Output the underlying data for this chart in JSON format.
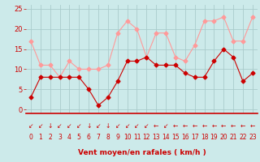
{
  "x": [
    0,
    1,
    2,
    3,
    4,
    5,
    6,
    7,
    8,
    9,
    10,
    11,
    12,
    13,
    14,
    15,
    16,
    17,
    18,
    19,
    20,
    21,
    22,
    23
  ],
  "avg_wind": [
    3,
    8,
    8,
    8,
    8,
    8,
    5,
    1,
    3,
    7,
    12,
    12,
    13,
    11,
    11,
    11,
    9,
    8,
    8,
    12,
    15,
    13,
    7,
    9
  ],
  "gust_wind": [
    17,
    11,
    11,
    8,
    12,
    10,
    10,
    10,
    11,
    19,
    22,
    20,
    13,
    19,
    19,
    13,
    12,
    16,
    22,
    22,
    23,
    17,
    17,
    23
  ],
  "bg_color": "#cceaea",
  "grid_color": "#aacccc",
  "avg_color": "#cc0000",
  "gust_color": "#ff9999",
  "xlabel": "Vent moyen/en rafales ( km/h )",
  "xlabel_color": "#cc0000",
  "tick_color": "#cc0000",
  "arrow_color": "#cc0000",
  "ylim": [
    -1,
    26
  ],
  "yticks": [
    0,
    5,
    10,
    15,
    20,
    25
  ],
  "xticks": [
    0,
    1,
    2,
    3,
    4,
    5,
    6,
    7,
    8,
    9,
    10,
    11,
    12,
    13,
    14,
    15,
    16,
    17,
    18,
    19,
    20,
    21,
    22,
    23
  ],
  "arrow_chars": [
    "↙",
    "↙",
    "↓",
    "↙",
    "↙",
    "↙",
    "↓",
    "↙",
    "↓",
    "↙",
    "↙",
    "↙",
    "↙",
    "←",
    "↙",
    "←",
    "←",
    "←",
    "←",
    "←",
    "←",
    "←",
    "←",
    "←"
  ]
}
